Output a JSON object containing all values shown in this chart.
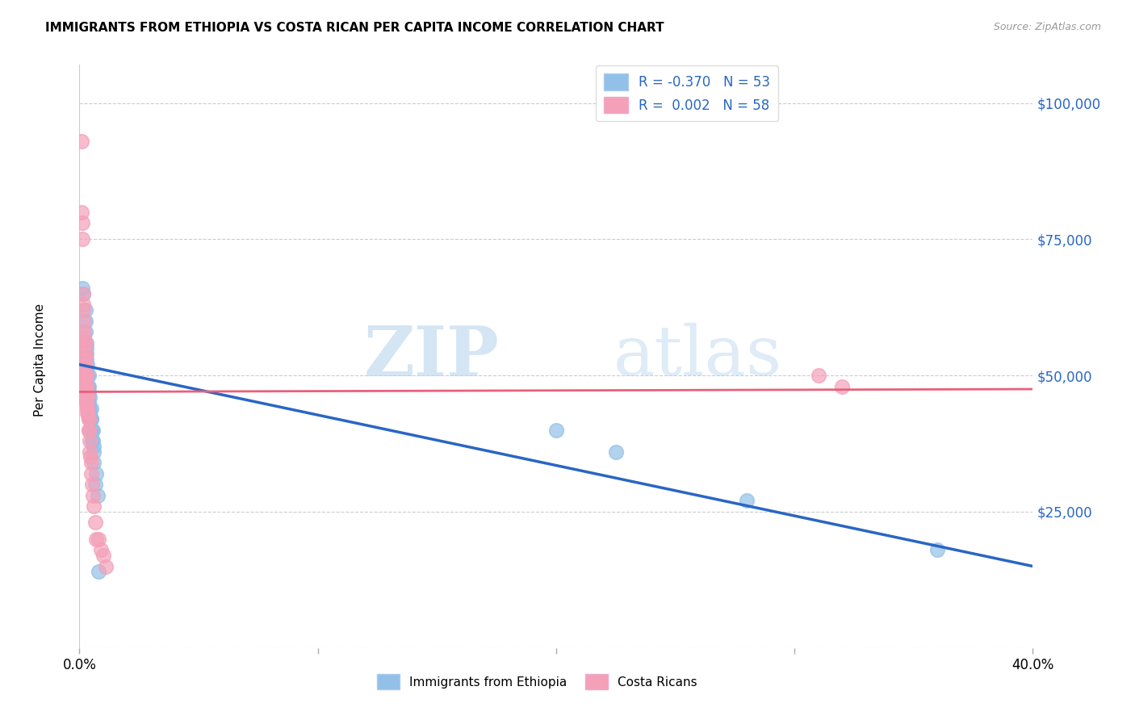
{
  "title": "IMMIGRANTS FROM ETHIOPIA VS COSTA RICAN PER CAPITA INCOME CORRELATION CHART",
  "source": "Source: ZipAtlas.com",
  "ylabel": "Per Capita Income",
  "y_ticks": [
    0,
    25000,
    50000,
    75000,
    100000
  ],
  "y_tick_labels": [
    "",
    "$25,000",
    "$50,000",
    "$75,000",
    "$100,000"
  ],
  "x_min": 0.0,
  "x_max": 0.4,
  "y_min": 0,
  "y_max": 107000,
  "blue_color": "#92C0E8",
  "pink_color": "#F4A0B8",
  "blue_line_color": "#2966C4",
  "pink_line_color": "#E8607A",
  "watermark_zip": "ZIP",
  "watermark_atlas": "atlas",
  "blue_scatter": [
    [
      0.0008,
      49000
    ],
    [
      0.001,
      52000
    ],
    [
      0.0012,
      66000
    ],
    [
      0.0014,
      65000
    ],
    [
      0.0015,
      48000
    ],
    [
      0.0016,
      47000
    ],
    [
      0.0018,
      52000
    ],
    [
      0.002,
      56000
    ],
    [
      0.002,
      50000
    ],
    [
      0.0022,
      48000
    ],
    [
      0.0022,
      46000
    ],
    [
      0.0024,
      62000
    ],
    [
      0.0025,
      60000
    ],
    [
      0.0026,
      58000
    ],
    [
      0.0028,
      56000
    ],
    [
      0.0028,
      54000
    ],
    [
      0.003,
      55000
    ],
    [
      0.003,
      53000
    ],
    [
      0.003,
      51000
    ],
    [
      0.0032,
      50000
    ],
    [
      0.0032,
      48000
    ],
    [
      0.0034,
      52000
    ],
    [
      0.0034,
      50000
    ],
    [
      0.0035,
      48000
    ],
    [
      0.0036,
      46000
    ],
    [
      0.0036,
      44000
    ],
    [
      0.0038,
      47000
    ],
    [
      0.0038,
      45000
    ],
    [
      0.004,
      50000
    ],
    [
      0.004,
      48000
    ],
    [
      0.0042,
      46000
    ],
    [
      0.0042,
      44000
    ],
    [
      0.0044,
      43000
    ],
    [
      0.0046,
      42000
    ],
    [
      0.0046,
      40000
    ],
    [
      0.0048,
      42000
    ],
    [
      0.005,
      44000
    ],
    [
      0.005,
      42000
    ],
    [
      0.0052,
      40000
    ],
    [
      0.0054,
      38000
    ],
    [
      0.0055,
      40000
    ],
    [
      0.0056,
      38000
    ],
    [
      0.0058,
      37000
    ],
    [
      0.006,
      36000
    ],
    [
      0.006,
      34000
    ],
    [
      0.0065,
      30000
    ],
    [
      0.007,
      32000
    ],
    [
      0.0075,
      28000
    ],
    [
      0.008,
      14000
    ],
    [
      0.2,
      40000
    ],
    [
      0.225,
      36000
    ],
    [
      0.28,
      27000
    ],
    [
      0.36,
      18000
    ]
  ],
  "pink_scatter": [
    [
      0.0008,
      80000
    ],
    [
      0.001,
      93000
    ],
    [
      0.0012,
      78000
    ],
    [
      0.0012,
      75000
    ],
    [
      0.0014,
      65000
    ],
    [
      0.0015,
      63000
    ],
    [
      0.0016,
      62000
    ],
    [
      0.0018,
      60000
    ],
    [
      0.0018,
      58000
    ],
    [
      0.0018,
      57000
    ],
    [
      0.002,
      56000
    ],
    [
      0.002,
      55000
    ],
    [
      0.002,
      54000
    ],
    [
      0.0022,
      53000
    ],
    [
      0.0022,
      52000
    ],
    [
      0.0022,
      51000
    ],
    [
      0.0022,
      50000
    ],
    [
      0.0024,
      56000
    ],
    [
      0.0024,
      54000
    ],
    [
      0.0024,
      52000
    ],
    [
      0.0024,
      50000
    ],
    [
      0.0024,
      49000
    ],
    [
      0.0026,
      48000
    ],
    [
      0.0026,
      47000
    ],
    [
      0.0026,
      46000
    ],
    [
      0.0028,
      50000
    ],
    [
      0.0028,
      48000
    ],
    [
      0.0028,
      46000
    ],
    [
      0.0028,
      45000
    ],
    [
      0.003,
      48000
    ],
    [
      0.003,
      47000
    ],
    [
      0.003,
      46000
    ],
    [
      0.003,
      45000
    ],
    [
      0.0032,
      44000
    ],
    [
      0.0032,
      43000
    ],
    [
      0.0034,
      46000
    ],
    [
      0.0034,
      44000
    ],
    [
      0.0036,
      43000
    ],
    [
      0.0038,
      42000
    ],
    [
      0.0038,
      40000
    ],
    [
      0.004,
      42000
    ],
    [
      0.004,
      40000
    ],
    [
      0.0042,
      38000
    ],
    [
      0.0044,
      36000
    ],
    [
      0.0046,
      35000
    ],
    [
      0.0048,
      34000
    ],
    [
      0.005,
      32000
    ],
    [
      0.0052,
      30000
    ],
    [
      0.0055,
      28000
    ],
    [
      0.006,
      26000
    ],
    [
      0.0065,
      23000
    ],
    [
      0.007,
      20000
    ],
    [
      0.008,
      20000
    ],
    [
      0.009,
      18000
    ],
    [
      0.01,
      17000
    ],
    [
      0.011,
      15000
    ],
    [
      0.31,
      50000
    ],
    [
      0.32,
      48000
    ]
  ],
  "blue_line_x": [
    0.0,
    0.4
  ],
  "blue_line_y": [
    52000,
    15000
  ],
  "pink_line_x": [
    0.0,
    0.4
  ],
  "pink_line_y": [
    47000,
    47500
  ]
}
